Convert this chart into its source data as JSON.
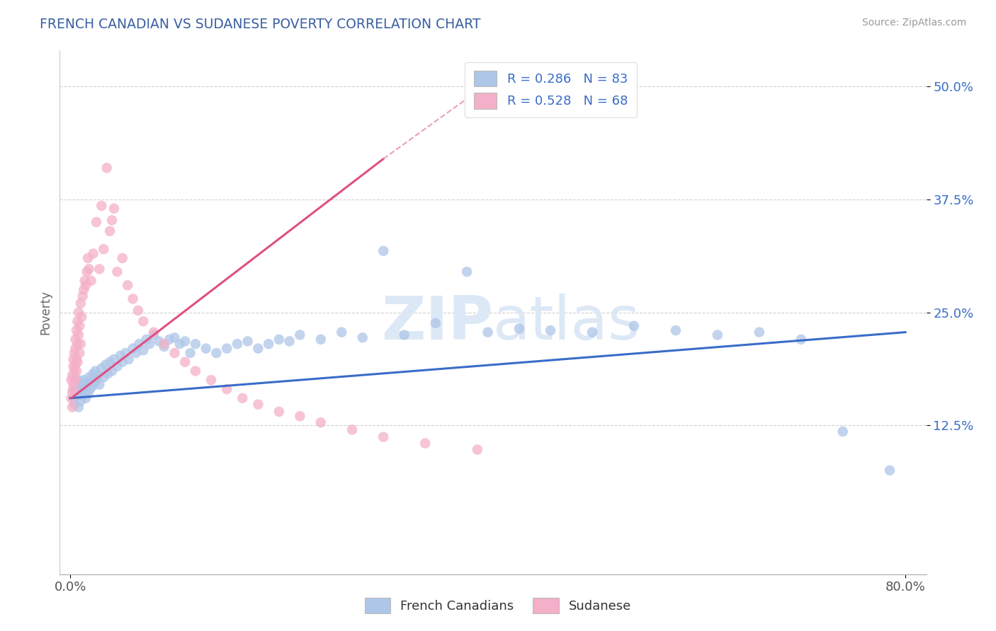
{
  "title": "FRENCH CANADIAN VS SUDANESE POVERTY CORRELATION CHART",
  "source_text": "Source: ZipAtlas.com",
  "ylabel": "Poverty",
  "xlim": [
    -0.01,
    0.82
  ],
  "ylim": [
    -0.04,
    0.54
  ],
  "xticklabels": [
    "0.0%",
    "80.0%"
  ],
  "ytick_positions": [
    0.125,
    0.25,
    0.375,
    0.5
  ],
  "yticklabels": [
    "12.5%",
    "25.0%",
    "37.5%",
    "50.0%"
  ],
  "R_blue": 0.286,
  "N_blue": 83,
  "R_pink": 0.528,
  "N_pink": 68,
  "legend_label_blue": "French Canadians",
  "legend_label_pink": "Sudanese",
  "blue_color": "#aec6e8",
  "pink_color": "#f4b0c8",
  "blue_line_color": "#3a6cc8",
  "pink_line_color": "#e05080",
  "pink_dash_color": "#e8a0b8",
  "title_color": "#3a5fa0",
  "watermark_color": "#dce8f5",
  "background_color": "#ffffff",
  "grid_color": "#cccccc",
  "french_canadian_x": [
    0.003,
    0.004,
    0.005,
    0.006,
    0.007,
    0.008,
    0.008,
    0.009,
    0.01,
    0.01,
    0.011,
    0.012,
    0.013,
    0.014,
    0.015,
    0.015,
    0.016,
    0.017,
    0.018,
    0.019,
    0.02,
    0.021,
    0.022,
    0.023,
    0.024,
    0.025,
    0.027,
    0.028,
    0.03,
    0.032,
    0.034,
    0.036,
    0.038,
    0.04,
    0.042,
    0.045,
    0.048,
    0.05,
    0.053,
    0.056,
    0.06,
    0.063,
    0.066,
    0.07,
    0.073,
    0.076,
    0.08,
    0.085,
    0.09,
    0.095,
    0.1,
    0.105,
    0.11,
    0.115,
    0.12,
    0.13,
    0.14,
    0.15,
    0.16,
    0.17,
    0.18,
    0.19,
    0.2,
    0.21,
    0.22,
    0.24,
    0.26,
    0.28,
    0.3,
    0.32,
    0.35,
    0.38,
    0.4,
    0.43,
    0.46,
    0.5,
    0.54,
    0.58,
    0.62,
    0.66,
    0.7,
    0.74,
    0.785
  ],
  "french_canadian_y": [
    0.155,
    0.148,
    0.162,
    0.17,
    0.158,
    0.145,
    0.175,
    0.16,
    0.152,
    0.165,
    0.17,
    0.158,
    0.175,
    0.162,
    0.168,
    0.155,
    0.172,
    0.16,
    0.178,
    0.165,
    0.175,
    0.168,
    0.182,
    0.172,
    0.185,
    0.175,
    0.18,
    0.17,
    0.188,
    0.178,
    0.192,
    0.182,
    0.195,
    0.185,
    0.198,
    0.19,
    0.202,
    0.195,
    0.205,
    0.198,
    0.21,
    0.205,
    0.215,
    0.208,
    0.22,
    0.215,
    0.225,
    0.218,
    0.212,
    0.22,
    0.222,
    0.215,
    0.218,
    0.205,
    0.215,
    0.21,
    0.205,
    0.21,
    0.215,
    0.218,
    0.21,
    0.215,
    0.22,
    0.218,
    0.225,
    0.22,
    0.228,
    0.222,
    0.318,
    0.225,
    0.238,
    0.295,
    0.228,
    0.232,
    0.23,
    0.228,
    0.235,
    0.23,
    0.225,
    0.228,
    0.22,
    0.118,
    0.075
  ],
  "sudanese_x": [
    0.001,
    0.001,
    0.002,
    0.002,
    0.002,
    0.003,
    0.003,
    0.003,
    0.003,
    0.004,
    0.004,
    0.004,
    0.005,
    0.005,
    0.005,
    0.005,
    0.006,
    0.006,
    0.006,
    0.007,
    0.007,
    0.007,
    0.008,
    0.008,
    0.009,
    0.009,
    0.01,
    0.01,
    0.011,
    0.012,
    0.013,
    0.014,
    0.015,
    0.016,
    0.017,
    0.018,
    0.02,
    0.022,
    0.025,
    0.028,
    0.03,
    0.032,
    0.035,
    0.038,
    0.04,
    0.042,
    0.045,
    0.05,
    0.055,
    0.06,
    0.065,
    0.07,
    0.08,
    0.09,
    0.1,
    0.11,
    0.12,
    0.135,
    0.15,
    0.165,
    0.18,
    0.2,
    0.22,
    0.24,
    0.27,
    0.3,
    0.34,
    0.39
  ],
  "sudanese_y": [
    0.155,
    0.175,
    0.162,
    0.145,
    0.18,
    0.165,
    0.19,
    0.17,
    0.198,
    0.175,
    0.205,
    0.185,
    0.192,
    0.21,
    0.175,
    0.22,
    0.198,
    0.23,
    0.185,
    0.215,
    0.24,
    0.195,
    0.225,
    0.25,
    0.205,
    0.235,
    0.26,
    0.215,
    0.245,
    0.268,
    0.275,
    0.285,
    0.28,
    0.295,
    0.31,
    0.298,
    0.285,
    0.315,
    0.35,
    0.298,
    0.368,
    0.32,
    0.41,
    0.34,
    0.352,
    0.365,
    0.295,
    0.31,
    0.28,
    0.265,
    0.252,
    0.24,
    0.228,
    0.215,
    0.205,
    0.195,
    0.185,
    0.175,
    0.165,
    0.155,
    0.148,
    0.14,
    0.135,
    0.128,
    0.12,
    0.112,
    0.105,
    0.098
  ]
}
